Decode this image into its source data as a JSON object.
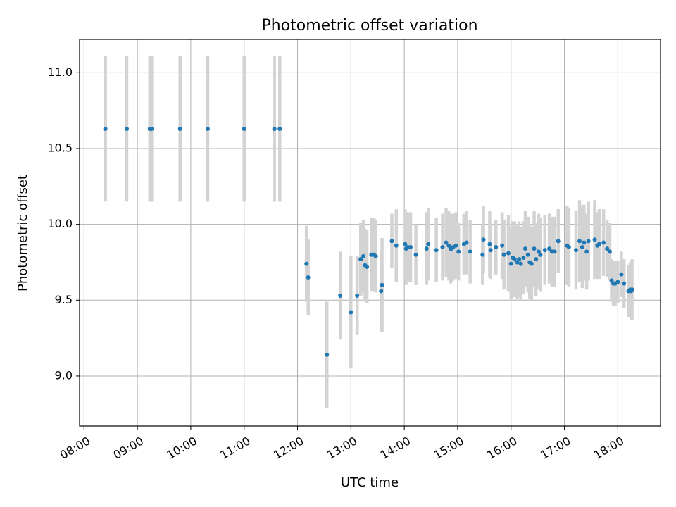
{
  "chart_data": {
    "type": "scatter",
    "title": "Photometric offset variation",
    "xlabel": "UTC time",
    "ylabel": "Photometric offset",
    "xlim": [
      "07:55",
      "18:48"
    ],
    "ylim": [
      8.67,
      11.22
    ],
    "x_ticks": [
      "08:00",
      "09:00",
      "10:00",
      "11:00",
      "12:00",
      "13:00",
      "14:00",
      "15:00",
      "16:00",
      "17:00",
      "18:00"
    ],
    "y_ticks": [
      9.0,
      9.5,
      10.0,
      10.5,
      11.0
    ],
    "y_tick_labels": [
      "9.0",
      "9.5",
      "10.0",
      "10.5",
      "11.0"
    ],
    "grid": true,
    "colors": {
      "point": "#1f77b4",
      "errorbar": "#d3d3d3",
      "grid": "#b0b0b0"
    },
    "series": [
      {
        "x": [
          "08:24",
          "08:48",
          "09:14",
          "09:16",
          "09:48",
          "10:19",
          "11:00",
          "11:34",
          "11:40",
          "12:10",
          "12:12",
          "12:33",
          "12:48",
          "13:00",
          "13:07",
          "13:11",
          "13:14",
          "13:16",
          "13:18",
          "13:23",
          "13:26",
          "13:28",
          "13:34",
          "13:35",
          "13:46",
          "13:51",
          "14:01",
          "14:02",
          "14:04",
          "14:07",
          "14:13",
          "14:25",
          "14:27",
          "14:36",
          "14:43",
          "14:47",
          "14:50",
          "14:52",
          "14:53",
          "14:55",
          "14:58",
          "15:01",
          "15:07",
          "15:10",
          "15:14",
          "15:28",
          "15:29",
          "15:36",
          "15:37",
          "15:43",
          "15:50",
          "15:52",
          "15:57",
          "16:00",
          "16:02",
          "16:04",
          "16:07",
          "16:09",
          "16:11",
          "16:14",
          "16:16",
          "16:19",
          "16:21",
          "16:23",
          "16:26",
          "16:28",
          "16:31",
          "16:33",
          "16:38",
          "16:43",
          "16:46",
          "16:49",
          "16:53",
          "17:03",
          "17:05",
          "17:13",
          "17:17",
          "17:20",
          "17:22",
          "17:25",
          "17:27",
          "17:34",
          "17:37",
          "17:39",
          "17:44",
          "17:48",
          "17:51",
          "17:53",
          "17:55",
          "17:57",
          "18:00",
          "18:04",
          "18:07",
          "18:12",
          "18:14",
          "18:15",
          "18:16"
        ],
        "y": [
          10.63,
          10.63,
          10.63,
          10.63,
          10.63,
          10.63,
          10.63,
          10.63,
          10.63,
          9.74,
          9.65,
          9.14,
          9.53,
          9.42,
          9.53,
          9.77,
          9.79,
          9.73,
          9.72,
          9.8,
          9.8,
          9.79,
          9.56,
          9.6,
          9.89,
          9.86,
          9.87,
          9.84,
          9.85,
          9.85,
          9.8,
          9.84,
          9.87,
          9.83,
          9.85,
          9.88,
          9.86,
          9.84,
          9.84,
          9.85,
          9.86,
          9.82,
          9.87,
          9.88,
          9.82,
          9.8,
          9.9,
          9.87,
          9.83,
          9.85,
          9.86,
          9.8,
          9.81,
          9.74,
          9.78,
          9.77,
          9.75,
          9.77,
          9.74,
          9.78,
          9.84,
          9.8,
          9.75,
          9.74,
          9.84,
          9.77,
          9.82,
          9.8,
          9.83,
          9.84,
          9.82,
          9.82,
          9.89,
          9.86,
          9.85,
          9.83,
          9.89,
          9.85,
          9.88,
          9.82,
          9.89,
          9.9,
          9.86,
          9.87,
          9.88,
          9.84,
          9.82,
          9.63,
          9.61,
          9.61,
          9.62,
          9.67,
          9.61,
          9.56,
          9.57,
          9.56,
          9.57
        ],
        "error": [
          0.48,
          0.48,
          0.48,
          0.48,
          0.48,
          0.48,
          0.48,
          0.48,
          0.48,
          0.25,
          0.25,
          0.35,
          0.29,
          0.37,
          0.26,
          0.24,
          0.24,
          0.24,
          0.24,
          0.24,
          0.24,
          0.24,
          0.27,
          0.31,
          0.18,
          0.24,
          0.23,
          0.24,
          0.23,
          0.23,
          0.2,
          0.24,
          0.24,
          0.21,
          0.22,
          0.23,
          0.23,
          0.23,
          0.22,
          0.22,
          0.22,
          0.19,
          0.2,
          0.21,
          0.21,
          0.2,
          0.22,
          0.22,
          0.19,
          0.18,
          0.22,
          0.23,
          0.25,
          0.24,
          0.24,
          0.25,
          0.24,
          0.25,
          0.24,
          0.24,
          0.25,
          0.25,
          0.24,
          0.24,
          0.25,
          0.24,
          0.25,
          0.24,
          0.23,
          0.23,
          0.23,
          0.23,
          0.21,
          0.26,
          0.26,
          0.26,
          0.27,
          0.27,
          0.25,
          0.25,
          0.26,
          0.26,
          0.22,
          0.23,
          0.22,
          0.19,
          0.19,
          0.14,
          0.15,
          0.15,
          0.14,
          0.15,
          0.16,
          0.17,
          0.18,
          0.19,
          0.2
        ]
      }
    ]
  }
}
